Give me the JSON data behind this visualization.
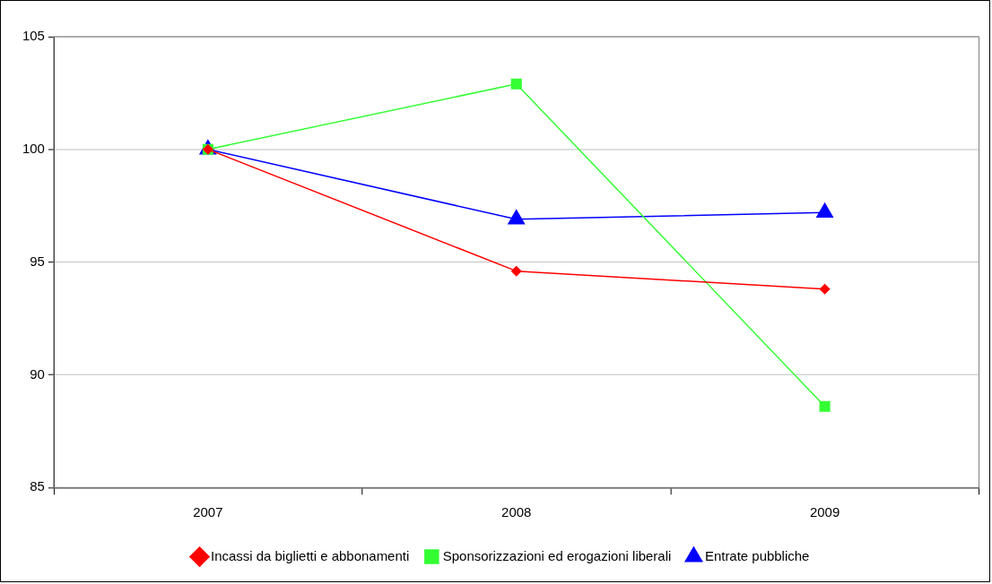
{
  "chart_data": {
    "type": "line",
    "categories": [
      "2007",
      "2008",
      "2009"
    ],
    "series": [
      {
        "name": "Incassi da biglietti e abbonamenti",
        "color": "#ff0000",
        "marker": "diamond",
        "values": [
          100,
          94.6,
          93.8
        ]
      },
      {
        "name": "Sponsorizzazioni ed erogazioni liberali",
        "color": "#33ff33",
        "marker": "square",
        "values": [
          100,
          102.9,
          88.6
        ]
      },
      {
        "name": "Entrate pubbliche",
        "color": "#0000ff",
        "marker": "triangle",
        "values": [
          100,
          96.9,
          97.2
        ]
      }
    ],
    "ylim": [
      85,
      105
    ],
    "yticks": [
      85,
      90,
      95,
      100,
      105
    ],
    "grid": "y",
    "legend": "bottom"
  }
}
